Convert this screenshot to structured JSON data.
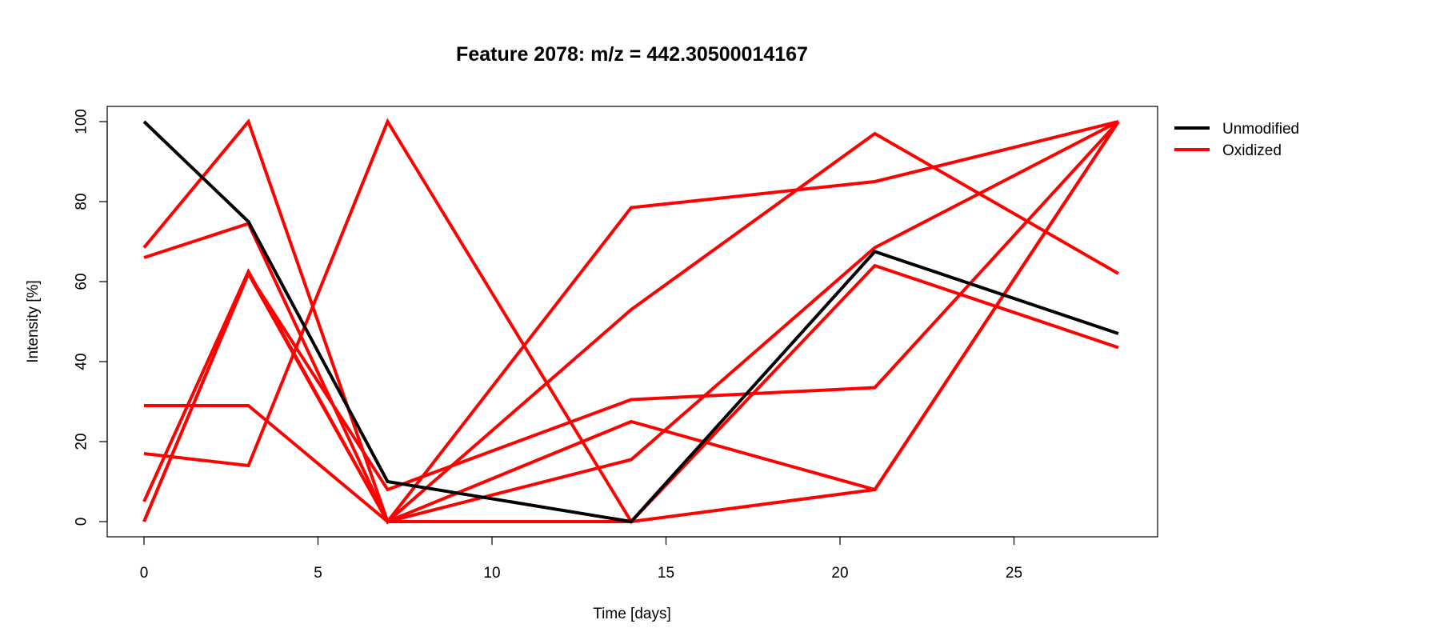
{
  "chart_data": {
    "type": "line",
    "title": "Feature 2078: m/z = 442.30500014167",
    "xlabel": "Time [days]",
    "ylabel": "Intensity [%]",
    "x": [
      0,
      3,
      7,
      14,
      21,
      28
    ],
    "xlim": [
      0,
      28
    ],
    "ylim": [
      0,
      100
    ],
    "xticks": [
      0,
      5,
      10,
      15,
      20,
      25
    ],
    "yticks": [
      0,
      20,
      40,
      60,
      80,
      100
    ],
    "grid": false,
    "legend": {
      "position": "top-right",
      "entries": [
        {
          "label": "Unmodified",
          "color": "#000000"
        },
        {
          "label": "Oxidized",
          "color": "#ff0000"
        }
      ]
    },
    "series": [
      {
        "group": "Unmodified",
        "color": "#000000",
        "values": [
          100,
          75,
          10,
          0,
          67.5,
          47
        ]
      },
      {
        "group": "Oxidized",
        "color": "#ff0000",
        "values": [
          68.5,
          100,
          0,
          53,
          97,
          62
        ]
      },
      {
        "group": "Oxidized",
        "color": "#ff0000",
        "values": [
          66,
          74.5,
          0,
          78.5,
          85,
          100
        ]
      },
      {
        "group": "Oxidized",
        "color": "#ff0000",
        "values": [
          29,
          29,
          0,
          0,
          8,
          100
        ]
      },
      {
        "group": "Oxidized",
        "color": "#ff0000",
        "values": [
          17,
          14,
          100,
          0,
          64,
          43.5
        ]
      },
      {
        "group": "Oxidized",
        "color": "#ff0000",
        "values": [
          5,
          62.5,
          0,
          15.5,
          68.5,
          100
        ]
      },
      {
        "group": "Oxidized",
        "color": "#ff0000",
        "values": [
          0,
          62,
          8,
          30.5,
          33.5,
          100
        ]
      },
      {
        "group": "Oxidized",
        "color": "#ff0000",
        "values": [
          0,
          62,
          0,
          25,
          8,
          100
        ]
      }
    ]
  }
}
